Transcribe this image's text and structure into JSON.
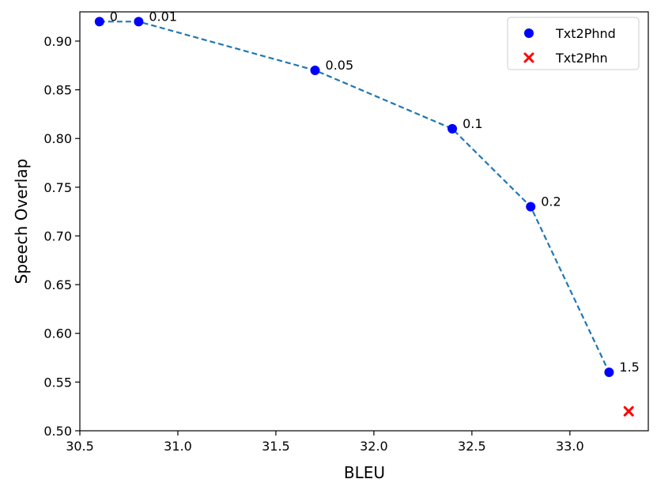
{
  "chart_data": {
    "type": "scatter",
    "xlabel": "BLEU",
    "ylabel": "Speech Overlap",
    "xlim": [
      30.5,
      33.4
    ],
    "ylim": [
      0.5,
      0.93
    ],
    "xticks": [
      "30.5",
      "31.0",
      "31.5",
      "32.0",
      "32.5",
      "33.0"
    ],
    "yticks": [
      "0.50",
      "0.55",
      "0.60",
      "0.65",
      "0.70",
      "0.75",
      "0.80",
      "0.85",
      "0.90"
    ],
    "grid": false,
    "legend_position": "top-right",
    "series": [
      {
        "name": "Txt2Phnd",
        "marker": "circle",
        "color": "#0000ff",
        "line": "dashed",
        "line_color": "#1f77b4",
        "points": [
          {
            "x": 30.6,
            "y": 0.92,
            "label": "0"
          },
          {
            "x": 30.8,
            "y": 0.92,
            "label": "0.01"
          },
          {
            "x": 31.7,
            "y": 0.87,
            "label": "0.05"
          },
          {
            "x": 32.4,
            "y": 0.81,
            "label": "0.1"
          },
          {
            "x": 32.8,
            "y": 0.73,
            "label": "0.2"
          },
          {
            "x": 33.2,
            "y": 0.56,
            "label": "1.5"
          }
        ]
      },
      {
        "name": "Txt2Phn",
        "marker": "x",
        "color": "#ff0000",
        "points": [
          {
            "x": 33.3,
            "y": 0.52
          }
        ]
      }
    ]
  }
}
